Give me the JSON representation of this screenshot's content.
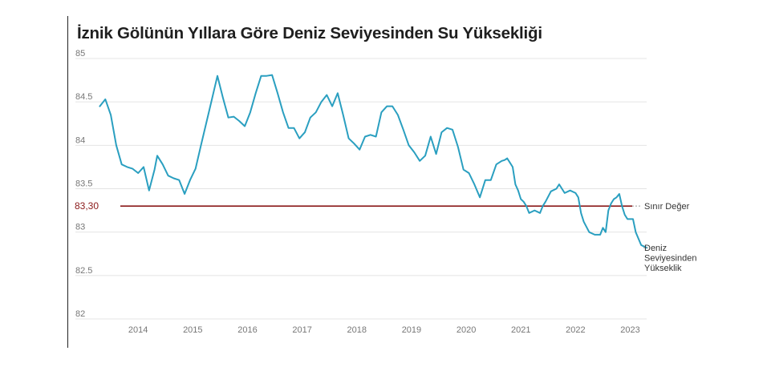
{
  "chart_data": {
    "type": "line",
    "title": "İznik Gölünün Yıllara Göre Deniz Seviyesinden Su Yüksekliği",
    "xlabel": "",
    "ylabel": "",
    "ylim": [
      82,
      85
    ],
    "yticks": [
      "85",
      "84.5",
      "84",
      "83.5",
      "83",
      "82.5",
      "82"
    ],
    "xticks": [
      "2014",
      "2015",
      "2016",
      "2017",
      "2018",
      "2019",
      "2020",
      "2021",
      "2022",
      "2023"
    ],
    "grid": true,
    "reference_line": {
      "label": "Sınır Değer",
      "value": 83.3,
      "value_label": "83,30",
      "color": "#8b1a1a"
    },
    "series": [
      {
        "name": "Deniz Seviyesinden Yükseklik",
        "name_lines": [
          "Deniz",
          "Seviyesinden",
          "Yükseklik"
        ],
        "color": "#2a9fc0",
        "x": [
          2013.3,
          2013.4,
          2013.5,
          2013.6,
          2013.7,
          2013.8,
          2013.9,
          2014.0,
          2014.1,
          2014.2,
          2014.3,
          2014.35,
          2014.45,
          2014.55,
          2014.65,
          2014.75,
          2014.85,
          2014.95,
          2015.05,
          2015.15,
          2015.3,
          2015.45,
          2015.55,
          2015.65,
          2015.75,
          2015.85,
          2015.95,
          2016.05,
          2016.15,
          2016.25,
          2016.35,
          2016.45,
          2016.55,
          2016.65,
          2016.75,
          2016.85,
          2016.95,
          2017.05,
          2017.15,
          2017.25,
          2017.35,
          2017.45,
          2017.55,
          2017.65,
          2017.75,
          2017.85,
          2017.95,
          2018.05,
          2018.15,
          2018.25,
          2018.35,
          2018.45,
          2018.55,
          2018.65,
          2018.75,
          2018.85,
          2018.95,
          2019.05,
          2019.15,
          2019.25,
          2019.35,
          2019.45,
          2019.55,
          2019.65,
          2019.75,
          2019.85,
          2019.95,
          2020.05,
          2020.15,
          2020.25,
          2020.35,
          2020.45,
          2020.55,
          2020.65,
          2020.7,
          2020.75,
          2020.85,
          2020.9,
          2020.95,
          2021.0,
          2021.05,
          2021.1,
          2021.15,
          2021.25,
          2021.35,
          2021.4,
          2021.45,
          2021.55,
          2021.65,
          2021.7,
          2021.8,
          2021.9,
          2022.0,
          2022.05,
          2022.1,
          2022.15,
          2022.25,
          2022.35,
          2022.45,
          2022.5,
          2022.55,
          2022.6,
          2022.65,
          2022.7,
          2022.75,
          2022.8,
          2022.85,
          2022.9,
          2022.95,
          2023.0
        ],
        "values": [
          84.45,
          84.53,
          84.35,
          84.0,
          83.78,
          83.75,
          83.73,
          83.68,
          83.75,
          83.48,
          83.72,
          83.88,
          83.78,
          83.65,
          83.62,
          83.6,
          83.44,
          83.6,
          83.73,
          84.0,
          84.4,
          84.8,
          84.55,
          84.32,
          84.33,
          84.28,
          84.22,
          84.38,
          84.6,
          84.8,
          84.8,
          84.81,
          84.6,
          84.38,
          84.2,
          84.2,
          84.08,
          84.15,
          84.32,
          84.38,
          84.5,
          84.58,
          84.45,
          84.6,
          84.35,
          84.08,
          84.02,
          83.95,
          84.1,
          84.12,
          84.1,
          84.38,
          84.45,
          84.45,
          84.35,
          84.18,
          84.0,
          83.92,
          83.82,
          83.88,
          84.1,
          83.9,
          84.15,
          84.2,
          84.18,
          83.98,
          83.72,
          83.68,
          83.55,
          83.4,
          83.6,
          83.6,
          83.78,
          83.82,
          83.83,
          83.85,
          83.75,
          83.55,
          83.48,
          83.38,
          83.35,
          83.3,
          83.22,
          83.25,
          83.22,
          83.3,
          83.35,
          83.47,
          83.5,
          83.55,
          83.45,
          83.48,
          83.45,
          83.4,
          83.22,
          83.12,
          83.0,
          82.97,
          82.97,
          83.05,
          83.0,
          83.25,
          83.33,
          83.38,
          83.4,
          83.44,
          83.3,
          83.2,
          83.15,
          83.15
        ],
        "tail_x": [
          2023.05,
          2023.1,
          2023.2,
          2023.3
        ],
        "tail_values": [
          83.15,
          83.0,
          82.85,
          82.82
        ]
      }
    ]
  }
}
